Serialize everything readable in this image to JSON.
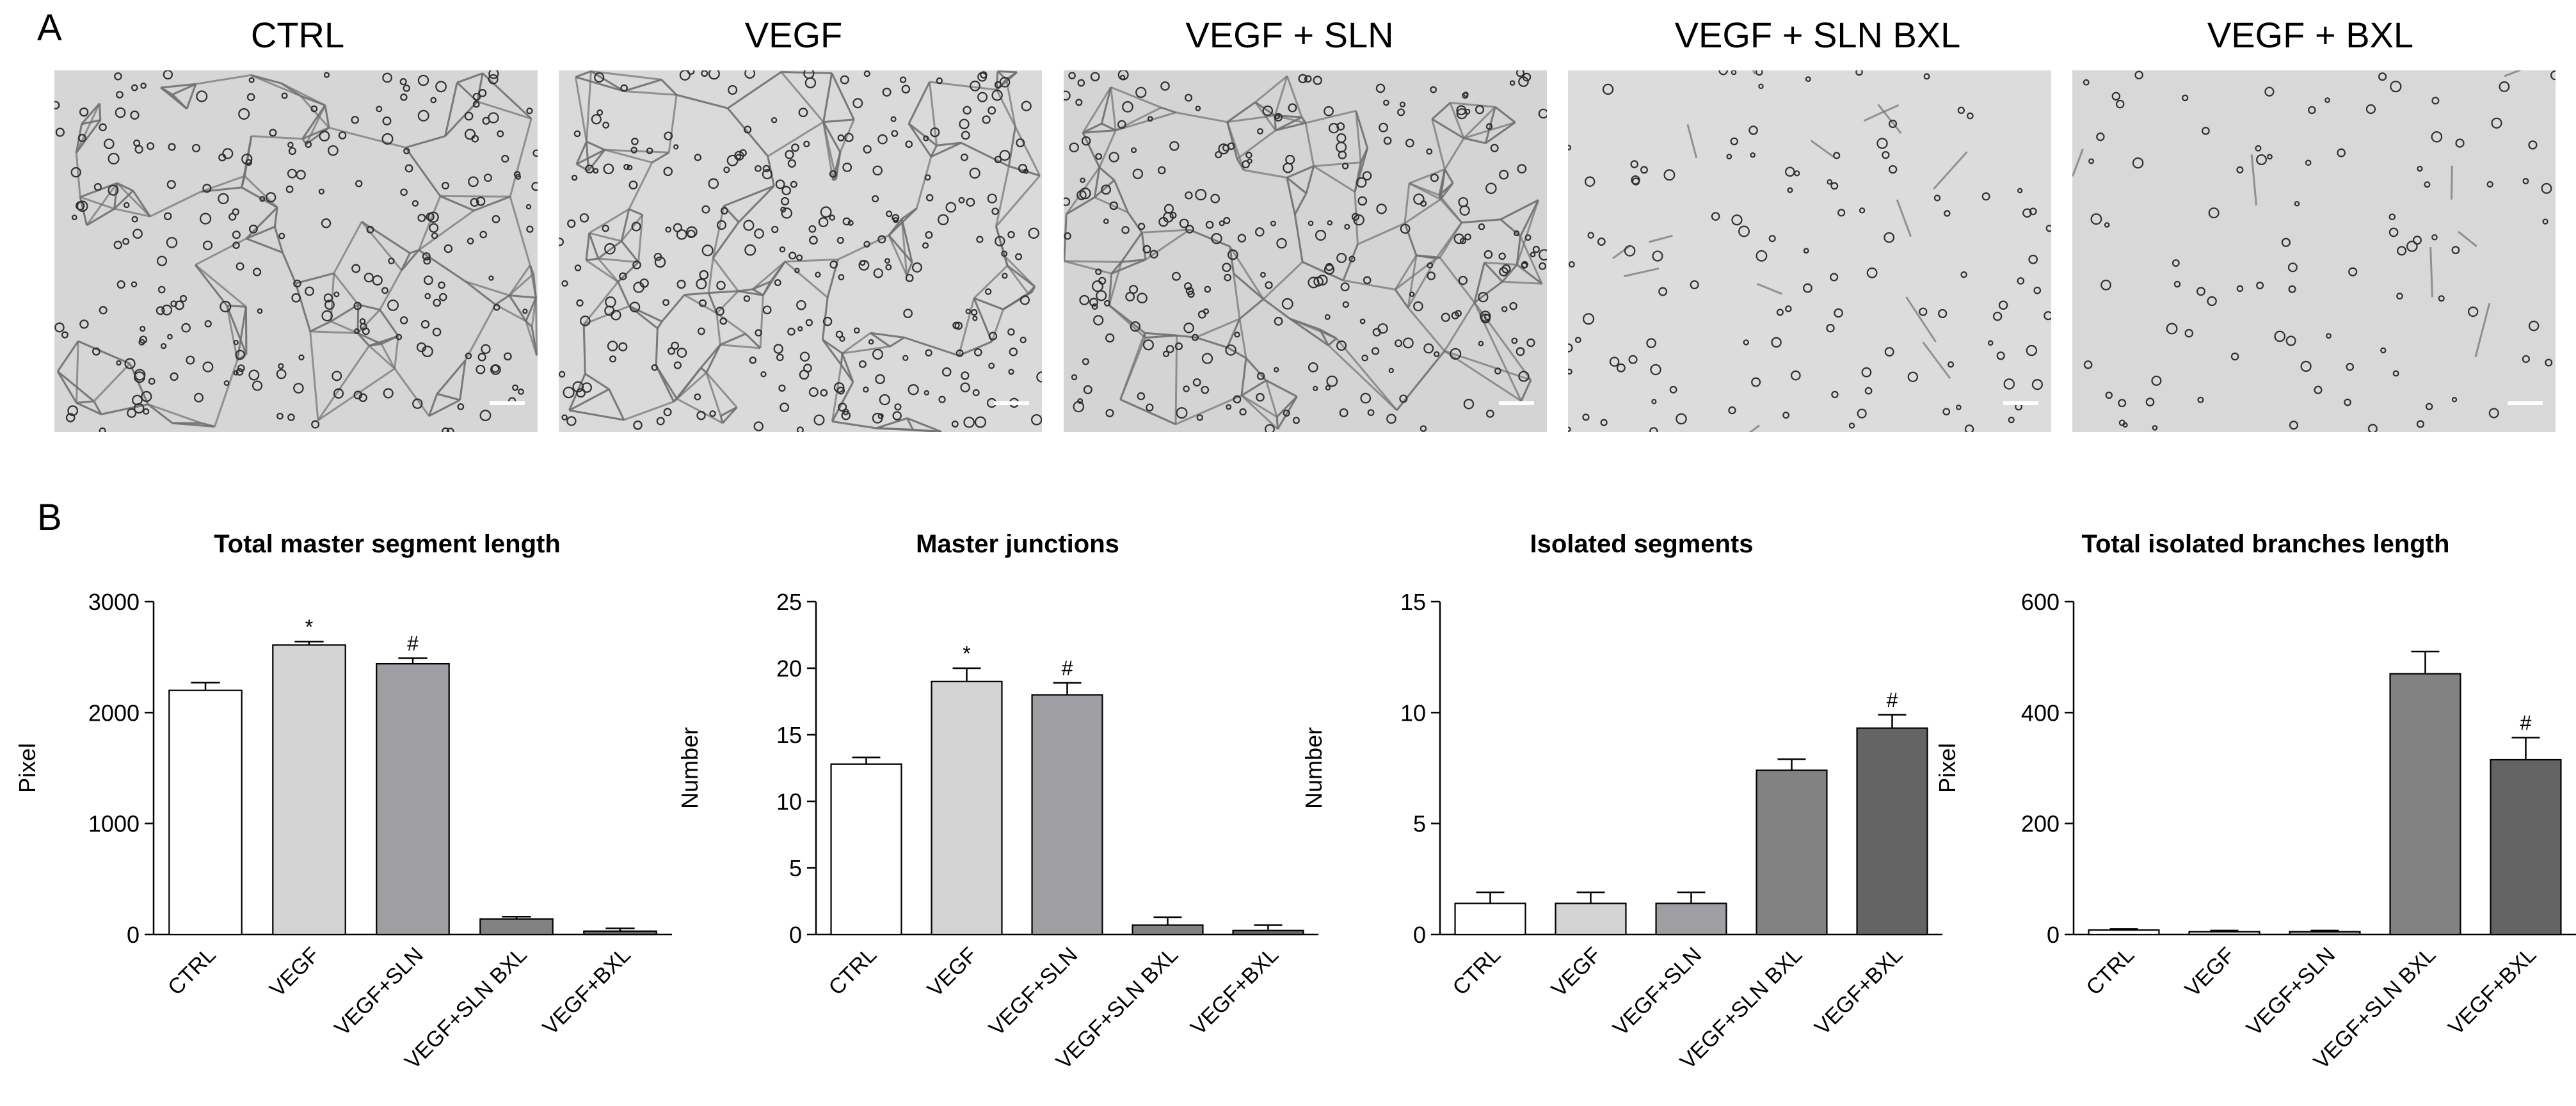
{
  "figure": {
    "panel_a": "A",
    "panel_b": "B"
  },
  "images": [
    {
      "title": "CTRL",
      "density": 1.0,
      "tone": "#d6d6d6"
    },
    {
      "title": "VEGF",
      "density": 1.25,
      "tone": "#dadada"
    },
    {
      "title": "VEGF + SLN",
      "density": 1.1,
      "tone": "#d4d4d4"
    },
    {
      "title": "VEGF + SLN BXL",
      "density": 0.25,
      "tone": "#dcdcdc"
    },
    {
      "title": "VEGF + BXL",
      "density": 0.12,
      "tone": "#d8d8d8"
    }
  ],
  "chart_data": [
    {
      "type": "bar",
      "title": "Total master segment length",
      "ylabel": "Pixel",
      "ylim": [
        0,
        3000
      ],
      "yticks": [
        0,
        1000,
        2000,
        3000
      ],
      "categories": [
        "CTRL",
        "VEGF",
        "VEGF+SLN",
        "VEGF+SLN BXL",
        "VEGF+BXL"
      ],
      "values": [
        2200,
        2610,
        2440,
        140,
        30
      ],
      "errors": [
        70,
        30,
        50,
        20,
        25
      ],
      "annotations": [
        "",
        "*",
        "#",
        "",
        ""
      ],
      "colors": [
        "#ffffff",
        "#d4d4d4",
        "#9e9ea3",
        "#828282",
        "#646464"
      ]
    },
    {
      "type": "bar",
      "title": "Master junctions",
      "ylabel": "Number",
      "ylim": [
        0,
        25
      ],
      "yticks": [
        0,
        5,
        10,
        15,
        20,
        25
      ],
      "categories": [
        "CTRL",
        "VEGF",
        "VEGF+SLN",
        "VEGF+SLN BXL",
        "VEGF+BXL"
      ],
      "values": [
        12.8,
        19.0,
        18.0,
        0.7,
        0.3
      ],
      "errors": [
        0.5,
        1.0,
        0.9,
        0.6,
        0.4
      ],
      "annotations": [
        "",
        "*",
        "#",
        "",
        ""
      ],
      "colors": [
        "#ffffff",
        "#d4d4d4",
        "#9e9ea3",
        "#828282",
        "#646464"
      ]
    },
    {
      "type": "bar",
      "title": "Isolated segments",
      "ylabel": "Number",
      "ylim": [
        0,
        15
      ],
      "yticks": [
        0,
        5,
        10,
        15
      ],
      "categories": [
        "CTRL",
        "VEGF",
        "VEGF+SLN",
        "VEGF+SLN BXL",
        "VEGF+BXL"
      ],
      "values": [
        1.4,
        1.4,
        1.4,
        7.4,
        9.3
      ],
      "errors": [
        0.5,
        0.5,
        0.5,
        0.5,
        0.6
      ],
      "annotations": [
        "",
        "",
        "",
        "",
        "#"
      ],
      "colors": [
        "#ffffff",
        "#d4d4d4",
        "#9e9ea3",
        "#828282",
        "#646464"
      ]
    },
    {
      "type": "bar",
      "title": "Total isolated branches length",
      "ylabel": "Pixel",
      "ylim": [
        0,
        600
      ],
      "yticks": [
        0,
        200,
        400,
        600
      ],
      "categories": [
        "CTRL",
        "VEGF",
        "VEGF+SLN",
        "VEGF+SLN BXL",
        "VEGF+BXL"
      ],
      "values": [
        8,
        5,
        5,
        470,
        315
      ],
      "errors": [
        2,
        2,
        2,
        40,
        40
      ],
      "annotations": [
        "",
        "",
        "",
        "",
        "#"
      ],
      "colors": [
        "#ffffff",
        "#d4d4d4",
        "#9e9ea3",
        "#828282",
        "#646464"
      ]
    }
  ]
}
